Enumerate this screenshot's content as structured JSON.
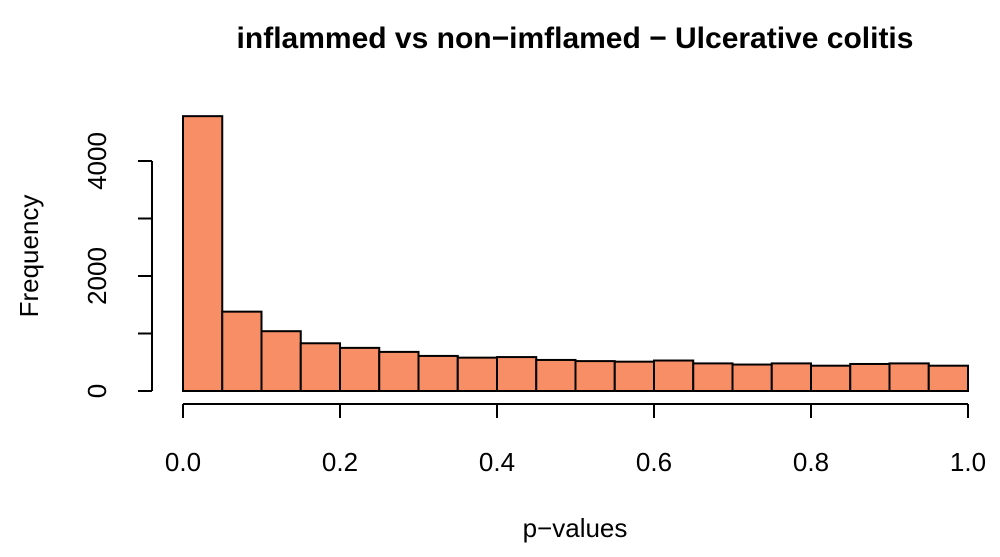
{
  "chart_data": {
    "type": "bar",
    "title": "inflammed vs non−imflamed − Ulcerative colitis",
    "xlabel": "p−values",
    "ylabel": "Frequency",
    "bar_color": "#F88E66",
    "xlim": [
      0,
      1
    ],
    "ylim": [
      0,
      4000
    ],
    "bin_width": 0.05,
    "x_ticks": [
      0.0,
      0.2,
      0.4,
      0.6,
      0.8,
      1.0
    ],
    "x_tick_labels": [
      "0.0",
      "0.2",
      "0.4",
      "0.6",
      "0.8",
      "1.0"
    ],
    "y_ticks": [
      0,
      2000,
      4000
    ],
    "y_tick_labels": [
      "0",
      "2000",
      "4000"
    ],
    "bins": [
      {
        "x0": 0.0,
        "x1": 0.05,
        "value": 4780
      },
      {
        "x0": 0.05,
        "x1": 0.1,
        "value": 1380
      },
      {
        "x0": 0.1,
        "x1": 0.15,
        "value": 1040
      },
      {
        "x0": 0.15,
        "x1": 0.2,
        "value": 830
      },
      {
        "x0": 0.2,
        "x1": 0.25,
        "value": 750
      },
      {
        "x0": 0.25,
        "x1": 0.3,
        "value": 680
      },
      {
        "x0": 0.3,
        "x1": 0.35,
        "value": 610
      },
      {
        "x0": 0.35,
        "x1": 0.4,
        "value": 580
      },
      {
        "x0": 0.4,
        "x1": 0.45,
        "value": 590
      },
      {
        "x0": 0.45,
        "x1": 0.5,
        "value": 540
      },
      {
        "x0": 0.5,
        "x1": 0.55,
        "value": 520
      },
      {
        "x0": 0.55,
        "x1": 0.6,
        "value": 510
      },
      {
        "x0": 0.6,
        "x1": 0.65,
        "value": 530
      },
      {
        "x0": 0.65,
        "x1": 0.7,
        "value": 480
      },
      {
        "x0": 0.7,
        "x1": 0.75,
        "value": 460
      },
      {
        "x0": 0.75,
        "x1": 0.8,
        "value": 480
      },
      {
        "x0": 0.8,
        "x1": 0.85,
        "value": 440
      },
      {
        "x0": 0.85,
        "x1": 0.9,
        "value": 470
      },
      {
        "x0": 0.9,
        "x1": 0.95,
        "value": 480
      },
      {
        "x0": 0.95,
        "x1": 1.0,
        "value": 440
      }
    ]
  }
}
